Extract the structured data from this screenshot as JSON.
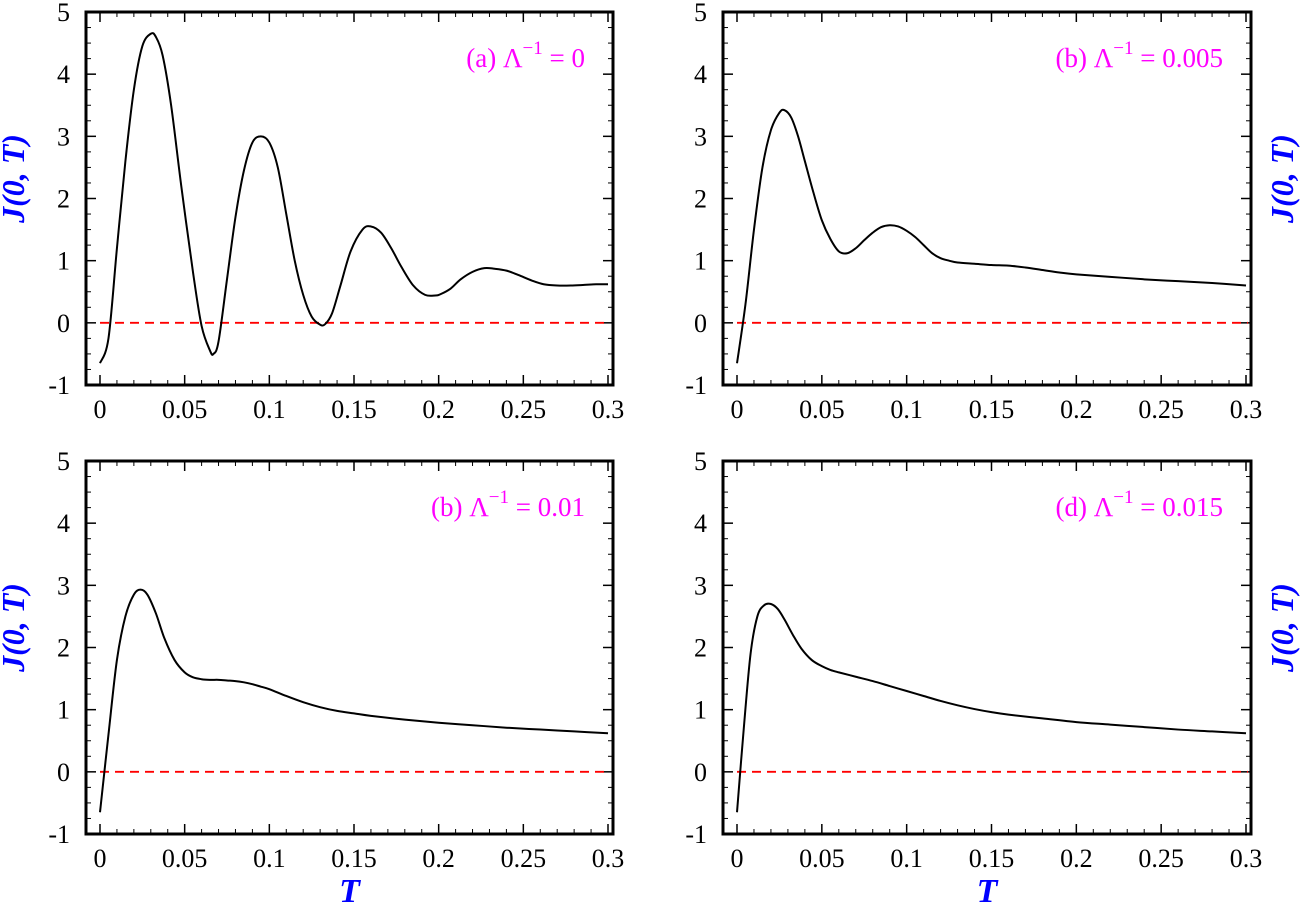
{
  "chart_data": [
    {
      "type": "line",
      "panel_label": "(a) Λ",
      "panel_sup": "−1",
      "panel_value": " = 0",
      "xlabel": "",
      "ylabel": "J(0, T)",
      "ylabel_side": "left",
      "xlim": [
        0,
        0.3
      ],
      "ylim": [
        -1,
        5
      ],
      "x_ticks": [
        "0",
        "0.05",
        "0.1",
        "0.15",
        "0.2",
        "0.25",
        "0.3"
      ],
      "y_ticks": [
        "-1",
        "0",
        "1",
        "2",
        "3",
        "4",
        "5"
      ],
      "reference_line": {
        "y": 0,
        "style": "dashed",
        "color": "#ff0000"
      },
      "series": [
        {
          "color": "#000000",
          "x": [
            0,
            0.005,
            0.01,
            0.015,
            0.02,
            0.025,
            0.03,
            0.033,
            0.037,
            0.042,
            0.048,
            0.055,
            0.06,
            0.065,
            0.067,
            0.07,
            0.075,
            0.08,
            0.085,
            0.09,
            0.095,
            0.1,
            0.105,
            0.11,
            0.115,
            0.12,
            0.125,
            0.13,
            0.133,
            0.137,
            0.142,
            0.148,
            0.155,
            0.16,
            0.166,
            0.172,
            0.178,
            0.185,
            0.192,
            0.198,
            0.201,
            0.207,
            0.213,
            0.22,
            0.227,
            0.233,
            0.24,
            0.247,
            0.255,
            0.262,
            0.27,
            0.278,
            0.286,
            0.293,
            0.3
          ],
          "y": [
            -0.65,
            -0.25,
            1.2,
            2.6,
            3.75,
            4.45,
            4.65,
            4.6,
            4.3,
            3.5,
            2.2,
            0.8,
            -0.05,
            -0.45,
            -0.5,
            -0.3,
            0.7,
            1.7,
            2.45,
            2.9,
            3.0,
            2.9,
            2.5,
            1.75,
            1.0,
            0.45,
            0.1,
            -0.03,
            -0.02,
            0.15,
            0.6,
            1.15,
            1.5,
            1.55,
            1.45,
            1.2,
            0.9,
            0.6,
            0.45,
            0.44,
            0.46,
            0.55,
            0.7,
            0.82,
            0.88,
            0.87,
            0.84,
            0.77,
            0.68,
            0.62,
            0.6,
            0.6,
            0.61,
            0.62,
            0.62
          ]
        }
      ]
    },
    {
      "type": "line",
      "panel_label": "(b) Λ",
      "panel_sup": "−1",
      "panel_value": " = 0.005",
      "xlabel": "",
      "ylabel": "J(0, T)",
      "ylabel_side": "right",
      "xlim": [
        0,
        0.3
      ],
      "ylim": [
        -1,
        5
      ],
      "x_ticks": [
        "0",
        "0.05",
        "0.1",
        "0.15",
        "0.2",
        "0.25",
        "0.3"
      ],
      "y_ticks": [
        "-1",
        "0",
        "1",
        "2",
        "3",
        "4",
        "5"
      ],
      "reference_line": {
        "y": 0,
        "style": "dashed",
        "color": "#ff0000"
      },
      "series": [
        {
          "color": "#000000",
          "x": [
            0,
            0.005,
            0.01,
            0.015,
            0.02,
            0.025,
            0.028,
            0.032,
            0.036,
            0.04,
            0.045,
            0.05,
            0.055,
            0.06,
            0.065,
            0.07,
            0.075,
            0.08,
            0.085,
            0.09,
            0.095,
            0.1,
            0.105,
            0.11,
            0.115,
            0.12,
            0.125,
            0.13,
            0.14,
            0.15,
            0.16,
            0.17,
            0.18,
            0.19,
            0.2,
            0.22,
            0.24,
            0.26,
            0.28,
            0.3
          ],
          "y": [
            -0.65,
            0.3,
            1.5,
            2.5,
            3.1,
            3.38,
            3.42,
            3.3,
            3.0,
            2.6,
            2.1,
            1.65,
            1.35,
            1.15,
            1.12,
            1.2,
            1.33,
            1.45,
            1.54,
            1.57,
            1.55,
            1.48,
            1.38,
            1.25,
            1.12,
            1.04,
            1.0,
            0.97,
            0.95,
            0.93,
            0.92,
            0.89,
            0.85,
            0.81,
            0.78,
            0.74,
            0.7,
            0.67,
            0.64,
            0.6
          ]
        }
      ]
    },
    {
      "type": "line",
      "panel_label": "(b) Λ",
      "panel_sup": "−1",
      "panel_value": " = 0.01",
      "xlabel": "T",
      "ylabel": "J(0, T)",
      "ylabel_side": "left",
      "xlim": [
        0,
        0.3
      ],
      "ylim": [
        -1,
        5
      ],
      "x_ticks": [
        "0",
        "0.05",
        "0.1",
        "0.15",
        "0.2",
        "0.25",
        "0.3"
      ],
      "y_ticks": [
        "-1",
        "0",
        "1",
        "2",
        "3",
        "4",
        "5"
      ],
      "reference_line": {
        "y": 0,
        "style": "dashed",
        "color": "#ff0000"
      },
      "series": [
        {
          "color": "#000000",
          "x": [
            0,
            0.005,
            0.01,
            0.015,
            0.02,
            0.024,
            0.028,
            0.033,
            0.038,
            0.044,
            0.05,
            0.055,
            0.06,
            0.065,
            0.07,
            0.075,
            0.08,
            0.085,
            0.09,
            0.095,
            0.1,
            0.11,
            0.12,
            0.13,
            0.14,
            0.15,
            0.16,
            0.18,
            0.2,
            0.22,
            0.24,
            0.26,
            0.28,
            0.3
          ],
          "y": [
            -0.65,
            0.6,
            1.8,
            2.5,
            2.85,
            2.93,
            2.85,
            2.55,
            2.15,
            1.8,
            1.6,
            1.52,
            1.49,
            1.48,
            1.48,
            1.47,
            1.46,
            1.44,
            1.41,
            1.37,
            1.33,
            1.22,
            1.12,
            1.04,
            0.98,
            0.94,
            0.9,
            0.84,
            0.79,
            0.75,
            0.71,
            0.68,
            0.65,
            0.62
          ]
        }
      ]
    },
    {
      "type": "line",
      "panel_label": "(d) Λ",
      "panel_sup": "−1",
      "panel_value": " = 0.015",
      "xlabel": "T",
      "ylabel": "J(0, T)",
      "ylabel_side": "right",
      "xlim": [
        0,
        0.3
      ],
      "ylim": [
        -1,
        5
      ],
      "x_ticks": [
        "0",
        "0.05",
        "0.1",
        "0.15",
        "0.2",
        "0.25",
        "0.3"
      ],
      "y_ticks": [
        "-1",
        "0",
        "1",
        "2",
        "3",
        "4",
        "5"
      ],
      "reference_line": {
        "y": 0,
        "style": "dashed",
        "color": "#ff0000"
      },
      "series": [
        {
          "color": "#000000",
          "x": [
            0,
            0.004,
            0.008,
            0.012,
            0.016,
            0.02,
            0.024,
            0.028,
            0.033,
            0.038,
            0.044,
            0.05,
            0.055,
            0.06,
            0.07,
            0.08,
            0.09,
            0.1,
            0.11,
            0.12,
            0.13,
            0.14,
            0.15,
            0.16,
            0.18,
            0.2,
            0.22,
            0.24,
            0.26,
            0.28,
            0.3
          ],
          "y": [
            -0.65,
            0.7,
            1.9,
            2.5,
            2.68,
            2.7,
            2.62,
            2.45,
            2.2,
            1.98,
            1.8,
            1.7,
            1.64,
            1.6,
            1.53,
            1.46,
            1.38,
            1.3,
            1.22,
            1.14,
            1.07,
            1.01,
            0.96,
            0.92,
            0.86,
            0.8,
            0.76,
            0.72,
            0.68,
            0.65,
            0.62
          ]
        }
      ]
    }
  ]
}
